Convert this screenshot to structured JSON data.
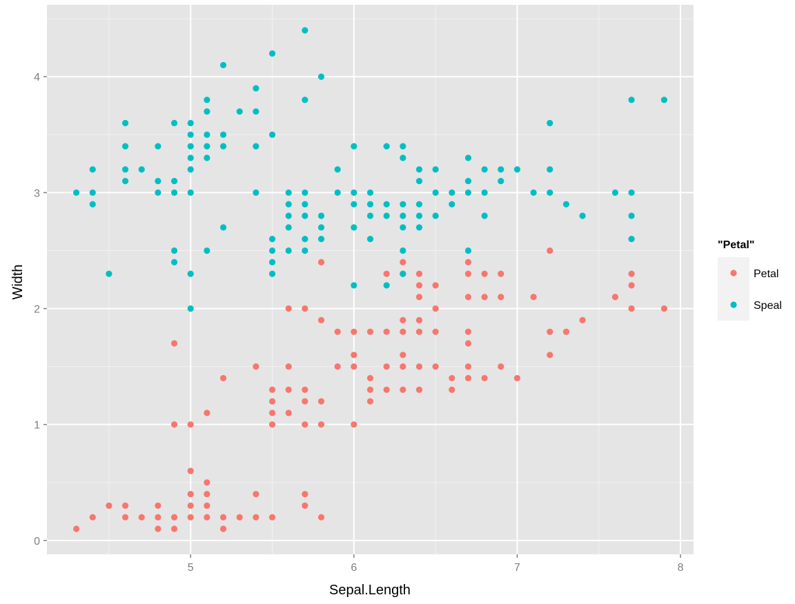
{
  "chart_data": {
    "type": "scatter",
    "title": "",
    "xlabel": "Sepal.Length",
    "ylabel": "Width",
    "xlim": [
      4.12,
      8.08
    ],
    "ylim": [
      -0.12,
      4.62
    ],
    "x_ticks": [
      5,
      6,
      7,
      8
    ],
    "y_ticks": [
      0,
      1,
      2,
      3,
      4
    ],
    "grid": true,
    "legend": {
      "title": "\"Petal\"",
      "position": "right"
    },
    "series": [
      {
        "name": "Petal",
        "color": "#F8766D",
        "points": [
          [
            4.3,
            0.1
          ],
          [
            4.4,
            0.2
          ],
          [
            4.5,
            0.3
          ],
          [
            4.6,
            0.2
          ],
          [
            4.6,
            0.3
          ],
          [
            4.7,
            0.2
          ],
          [
            4.8,
            0.1
          ],
          [
            4.8,
            0.2
          ],
          [
            4.8,
            0.3
          ],
          [
            4.9,
            0.1
          ],
          [
            4.9,
            0.2
          ],
          [
            4.9,
            1.0
          ],
          [
            4.9,
            1.7
          ],
          [
            5.0,
            0.2
          ],
          [
            5.0,
            0.3
          ],
          [
            5.0,
            0.4
          ],
          [
            5.0,
            0.6
          ],
          [
            5.0,
            1.0
          ],
          [
            5.1,
            0.2
          ],
          [
            5.1,
            0.3
          ],
          [
            5.1,
            0.4
          ],
          [
            5.1,
            0.5
          ],
          [
            5.1,
            1.1
          ],
          [
            5.2,
            0.1
          ],
          [
            5.2,
            0.2
          ],
          [
            5.2,
            1.4
          ],
          [
            5.3,
            0.2
          ],
          [
            5.4,
            0.2
          ],
          [
            5.4,
            0.4
          ],
          [
            5.4,
            1.5
          ],
          [
            5.5,
            0.2
          ],
          [
            5.5,
            1.0
          ],
          [
            5.5,
            1.1
          ],
          [
            5.5,
            1.2
          ],
          [
            5.5,
            1.3
          ],
          [
            5.6,
            1.1
          ],
          [
            5.6,
            1.3
          ],
          [
            5.6,
            1.5
          ],
          [
            5.6,
            2.0
          ],
          [
            5.7,
            0.3
          ],
          [
            5.7,
            0.4
          ],
          [
            5.7,
            1.0
          ],
          [
            5.7,
            1.2
          ],
          [
            5.7,
            1.3
          ],
          [
            5.7,
            2.0
          ],
          [
            5.8,
            0.2
          ],
          [
            5.8,
            1.0
          ],
          [
            5.8,
            1.2
          ],
          [
            5.8,
            1.9
          ],
          [
            5.8,
            2.4
          ],
          [
            5.9,
            1.5
          ],
          [
            5.9,
            1.8
          ],
          [
            6.0,
            1.0
          ],
          [
            6.0,
            1.5
          ],
          [
            6.0,
            1.6
          ],
          [
            6.0,
            1.8
          ],
          [
            6.1,
            1.2
          ],
          [
            6.1,
            1.3
          ],
          [
            6.1,
            1.4
          ],
          [
            6.1,
            1.8
          ],
          [
            6.2,
            1.3
          ],
          [
            6.2,
            1.5
          ],
          [
            6.2,
            1.8
          ],
          [
            6.2,
            2.3
          ],
          [
            6.3,
            1.3
          ],
          [
            6.3,
            1.5
          ],
          [
            6.3,
            1.6
          ],
          [
            6.3,
            1.8
          ],
          [
            6.3,
            1.9
          ],
          [
            6.3,
            2.3
          ],
          [
            6.3,
            2.4
          ],
          [
            6.4,
            1.3
          ],
          [
            6.4,
            1.5
          ],
          [
            6.4,
            1.8
          ],
          [
            6.4,
            1.9
          ],
          [
            6.4,
            2.1
          ],
          [
            6.4,
            2.2
          ],
          [
            6.4,
            2.3
          ],
          [
            6.5,
            1.5
          ],
          [
            6.5,
            1.8
          ],
          [
            6.5,
            2.0
          ],
          [
            6.5,
            2.2
          ],
          [
            6.6,
            1.3
          ],
          [
            6.6,
            1.4
          ],
          [
            6.7,
            1.4
          ],
          [
            6.7,
            1.5
          ],
          [
            6.7,
            1.7
          ],
          [
            6.7,
            1.8
          ],
          [
            6.7,
            2.1
          ],
          [
            6.7,
            2.3
          ],
          [
            6.7,
            2.4
          ],
          [
            6.8,
            1.4
          ],
          [
            6.8,
            2.1
          ],
          [
            6.8,
            2.3
          ],
          [
            6.9,
            1.5
          ],
          [
            6.9,
            2.1
          ],
          [
            6.9,
            2.3
          ],
          [
            7.0,
            1.4
          ],
          [
            7.1,
            2.1
          ],
          [
            7.2,
            1.6
          ],
          [
            7.2,
            1.8
          ],
          [
            7.2,
            2.5
          ],
          [
            7.3,
            1.8
          ],
          [
            7.4,
            1.9
          ],
          [
            7.6,
            2.1
          ],
          [
            7.7,
            2.0
          ],
          [
            7.7,
            2.2
          ],
          [
            7.7,
            2.3
          ],
          [
            7.9,
            2.0
          ]
        ]
      },
      {
        "name": "Speal",
        "color": "#00BFC4",
        "points": [
          [
            4.3,
            3.0
          ],
          [
            4.4,
            2.9
          ],
          [
            4.4,
            3.0
          ],
          [
            4.4,
            3.2
          ],
          [
            4.5,
            2.3
          ],
          [
            4.6,
            3.1
          ],
          [
            4.6,
            3.2
          ],
          [
            4.6,
            3.4
          ],
          [
            4.6,
            3.6
          ],
          [
            4.7,
            3.2
          ],
          [
            4.8,
            3.0
          ],
          [
            4.8,
            3.1
          ],
          [
            4.8,
            3.4
          ],
          [
            4.9,
            2.4
          ],
          [
            4.9,
            2.5
          ],
          [
            4.9,
            3.0
          ],
          [
            4.9,
            3.1
          ],
          [
            4.9,
            3.6
          ],
          [
            5.0,
            2.0
          ],
          [
            5.0,
            2.3
          ],
          [
            5.0,
            3.0
          ],
          [
            5.0,
            3.2
          ],
          [
            5.0,
            3.3
          ],
          [
            5.0,
            3.4
          ],
          [
            5.0,
            3.5
          ],
          [
            5.0,
            3.6
          ],
          [
            5.1,
            2.5
          ],
          [
            5.1,
            3.3
          ],
          [
            5.1,
            3.4
          ],
          [
            5.1,
            3.5
          ],
          [
            5.1,
            3.7
          ],
          [
            5.1,
            3.8
          ],
          [
            5.2,
            2.7
          ],
          [
            5.2,
            3.4
          ],
          [
            5.2,
            3.5
          ],
          [
            5.2,
            4.1
          ],
          [
            5.3,
            3.7
          ],
          [
            5.4,
            3.0
          ],
          [
            5.4,
            3.4
          ],
          [
            5.4,
            3.7
          ],
          [
            5.4,
            3.9
          ],
          [
            5.5,
            2.3
          ],
          [
            5.5,
            2.4
          ],
          [
            5.5,
            2.5
          ],
          [
            5.5,
            2.6
          ],
          [
            5.5,
            3.5
          ],
          [
            5.5,
            4.2
          ],
          [
            5.6,
            2.5
          ],
          [
            5.6,
            2.7
          ],
          [
            5.6,
            2.8
          ],
          [
            5.6,
            2.9
          ],
          [
            5.6,
            3.0
          ],
          [
            5.7,
            2.5
          ],
          [
            5.7,
            2.6
          ],
          [
            5.7,
            2.8
          ],
          [
            5.7,
            2.9
          ],
          [
            5.7,
            3.0
          ],
          [
            5.7,
            3.8
          ],
          [
            5.7,
            4.4
          ],
          [
            5.8,
            2.6
          ],
          [
            5.8,
            2.7
          ],
          [
            5.8,
            2.8
          ],
          [
            5.8,
            4.0
          ],
          [
            5.9,
            3.0
          ],
          [
            5.9,
            3.2
          ],
          [
            6.0,
            2.2
          ],
          [
            6.0,
            2.7
          ],
          [
            6.0,
            2.9
          ],
          [
            6.0,
            3.0
          ],
          [
            6.0,
            3.4
          ],
          [
            6.1,
            2.6
          ],
          [
            6.1,
            2.8
          ],
          [
            6.1,
            2.9
          ],
          [
            6.1,
            3.0
          ],
          [
            6.2,
            2.2
          ],
          [
            6.2,
            2.8
          ],
          [
            6.2,
            2.9
          ],
          [
            6.2,
            3.4
          ],
          [
            6.3,
            2.3
          ],
          [
            6.3,
            2.5
          ],
          [
            6.3,
            2.7
          ],
          [
            6.3,
            2.8
          ],
          [
            6.3,
            2.9
          ],
          [
            6.3,
            3.3
          ],
          [
            6.3,
            3.4
          ],
          [
            6.4,
            2.7
          ],
          [
            6.4,
            2.8
          ],
          [
            6.4,
            2.9
          ],
          [
            6.4,
            3.1
          ],
          [
            6.4,
            3.2
          ],
          [
            6.5,
            2.8
          ],
          [
            6.5,
            3.0
          ],
          [
            6.5,
            3.2
          ],
          [
            6.6,
            2.9
          ],
          [
            6.6,
            3.0
          ],
          [
            6.7,
            2.5
          ],
          [
            6.7,
            3.0
          ],
          [
            6.7,
            3.1
          ],
          [
            6.7,
            3.3
          ],
          [
            6.8,
            2.8
          ],
          [
            6.8,
            3.0
          ],
          [
            6.8,
            3.2
          ],
          [
            6.9,
            3.1
          ],
          [
            6.9,
            3.2
          ],
          [
            7.0,
            3.2
          ],
          [
            7.1,
            3.0
          ],
          [
            7.2,
            3.0
          ],
          [
            7.2,
            3.2
          ],
          [
            7.2,
            3.6
          ],
          [
            7.3,
            2.9
          ],
          [
            7.4,
            2.8
          ],
          [
            7.6,
            3.0
          ],
          [
            7.7,
            2.6
          ],
          [
            7.7,
            2.8
          ],
          [
            7.7,
            3.0
          ],
          [
            7.7,
            3.8
          ],
          [
            7.9,
            3.8
          ]
        ]
      }
    ]
  }
}
